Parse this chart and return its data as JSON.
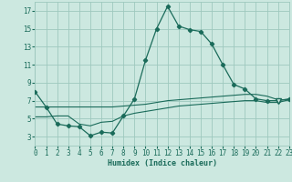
{
  "xlabel": "Humidex (Indice chaleur)",
  "x": [
    0,
    1,
    2,
    3,
    4,
    5,
    6,
    7,
    8,
    9,
    10,
    11,
    12,
    13,
    14,
    15,
    16,
    17,
    18,
    19,
    20,
    21,
    22,
    23
  ],
  "y_curve": [
    8.0,
    6.3,
    4.4,
    4.2,
    4.1,
    3.1,
    3.5,
    3.4,
    5.3,
    7.2,
    11.5,
    15.0,
    17.5,
    15.3,
    14.9,
    14.7,
    13.3,
    11.0,
    8.8,
    8.3,
    7.2,
    7.0,
    7.0,
    7.2
  ],
  "y_upper_trend": [
    6.3,
    6.3,
    6.3,
    6.3,
    6.3,
    6.3,
    6.3,
    6.3,
    6.4,
    6.5,
    6.6,
    6.8,
    7.0,
    7.1,
    7.2,
    7.3,
    7.4,
    7.5,
    7.6,
    7.7,
    7.7,
    7.5,
    7.1,
    7.1
  ],
  "y_lower_trend": [
    5.2,
    5.2,
    5.3,
    5.3,
    4.4,
    4.2,
    4.6,
    4.7,
    5.3,
    5.6,
    5.8,
    6.0,
    6.2,
    6.4,
    6.5,
    6.6,
    6.7,
    6.8,
    6.9,
    7.0,
    7.0,
    6.8,
    6.8,
    7.1
  ],
  "bg_color": "#cce8e0",
  "grid_color": "#9ec8be",
  "line_color": "#1a6b5a",
  "ylim": [
    2,
    18
  ],
  "xlim": [
    0,
    23
  ],
  "yticks": [
    3,
    5,
    7,
    9,
    11,
    13,
    15,
    17
  ],
  "xticks": [
    0,
    1,
    2,
    3,
    4,
    5,
    6,
    7,
    8,
    9,
    10,
    11,
    12,
    13,
    14,
    15,
    16,
    17,
    18,
    19,
    20,
    21,
    22,
    23
  ],
  "triangle_x": 22,
  "triangle_y": 7.0
}
